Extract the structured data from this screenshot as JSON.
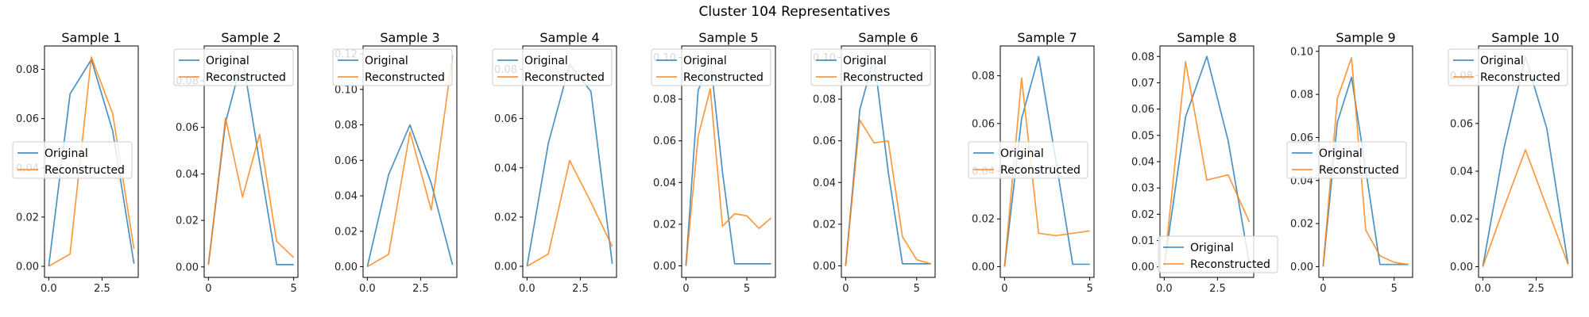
{
  "figure": {
    "suptitle": "Cluster 104 Representatives",
    "colors": {
      "original": "#1f77b4",
      "reconstructed": "#ff7f0e"
    }
  },
  "chart_data": [
    {
      "type": "line",
      "title": "Sample 1",
      "x": [
        0,
        1,
        2,
        3,
        4
      ],
      "series": [
        {
          "name": "Original",
          "values": [
            0.0,
            0.07,
            0.084,
            0.055,
            0.001
          ]
        },
        {
          "name": "Reconstructed",
          "values": [
            0.0,
            0.005,
            0.085,
            0.062,
            0.007
          ]
        }
      ],
      "xlim": [
        -0.2,
        4.2
      ],
      "ylim": [
        -0.0045,
        0.0895
      ],
      "xticks": [
        0,
        2.5
      ],
      "xtick_labels": [
        "0.0",
        "2.5"
      ],
      "yticks": [
        0.0,
        0.02,
        0.04,
        0.06,
        0.08
      ],
      "ytick_labels": [
        "0.00",
        "0.02",
        "0.04",
        "0.06",
        "0.08"
      ],
      "legend": "center-left",
      "legend_labels": [
        "Original",
        "Reconstructed"
      ]
    },
    {
      "type": "line",
      "title": "Sample 2",
      "x": [
        0,
        1,
        2,
        3,
        4,
        5
      ],
      "series": [
        {
          "name": "Original",
          "values": [
            0.001,
            0.062,
            0.09,
            0.045,
            0.001,
            0.001
          ]
        },
        {
          "name": "Reconstructed",
          "values": [
            0.001,
            0.064,
            0.03,
            0.057,
            0.011,
            0.004
          ]
        }
      ],
      "xlim": [
        -0.25,
        5.25
      ],
      "ylim": [
        -0.0045,
        0.095
      ],
      "xticks": [
        0,
        5
      ],
      "xtick_labels": [
        "0",
        "5"
      ],
      "yticks": [
        0.0,
        0.02,
        0.04,
        0.06,
        0.08
      ],
      "ytick_labels": [
        "0.00",
        "0.02",
        "0.04",
        "0.06",
        "0.08"
      ],
      "legend": "upper-left",
      "legend_labels": [
        "Original",
        "Reconstructed"
      ]
    },
    {
      "type": "line",
      "title": "Sample 3",
      "x": [
        0,
        1,
        2,
        3,
        4
      ],
      "series": [
        {
          "name": "Original",
          "values": [
            0.0,
            0.052,
            0.08,
            0.047,
            0.001
          ]
        },
        {
          "name": "Reconstructed",
          "values": [
            0.0,
            0.007,
            0.076,
            0.032,
            0.119
          ]
        }
      ],
      "xlim": [
        -0.2,
        4.2
      ],
      "ylim": [
        -0.006,
        0.1245
      ],
      "xticks": [
        0,
        2.5
      ],
      "xtick_labels": [
        "0.0",
        "2.5"
      ],
      "yticks": [
        0.0,
        0.02,
        0.04,
        0.06,
        0.08,
        0.1,
        0.12
      ],
      "ytick_labels": [
        "0.00",
        "0.02",
        "0.04",
        "0.06",
        "0.08",
        "0.10",
        "0.12"
      ],
      "legend": "upper-left",
      "legend_labels": [
        "Original",
        "Reconstructed"
      ]
    },
    {
      "type": "line",
      "title": "Sample 4",
      "x": [
        0,
        1,
        2,
        3,
        4
      ],
      "series": [
        {
          "name": "Original",
          "values": [
            0.0,
            0.05,
            0.082,
            0.071,
            0.001
          ]
        },
        {
          "name": "Reconstructed",
          "values": [
            0.0,
            0.005,
            0.043,
            0.026,
            0.008
          ]
        }
      ],
      "xlim": [
        -0.2,
        4.2
      ],
      "ylim": [
        -0.0045,
        0.0895
      ],
      "xticks": [
        0,
        2.5
      ],
      "xtick_labels": [
        "0.0",
        "2.5"
      ],
      "yticks": [
        0.0,
        0.02,
        0.04,
        0.06,
        0.08
      ],
      "ytick_labels": [
        "0.00",
        "0.02",
        "0.04",
        "0.06",
        "0.08"
      ],
      "legend": "upper-left",
      "legend_labels": [
        "Original",
        "Reconstructed"
      ]
    },
    {
      "type": "line",
      "title": "Sample 5",
      "x": [
        0,
        1,
        2,
        3,
        4,
        5,
        6,
        7
      ],
      "series": [
        {
          "name": "Original",
          "values": [
            0.0,
            0.084,
            0.1,
            0.045,
            0.001,
            0.001,
            0.001,
            0.001
          ]
        },
        {
          "name": "Reconstructed",
          "values": [
            0.0,
            0.062,
            0.085,
            0.019,
            0.025,
            0.024,
            0.018,
            0.023
          ]
        }
      ],
      "xlim": [
        -0.35,
        7.35
      ],
      "ylim": [
        -0.0055,
        0.1055
      ],
      "xticks": [
        0,
        5
      ],
      "xtick_labels": [
        "0",
        "5"
      ],
      "yticks": [
        0.0,
        0.02,
        0.04,
        0.06,
        0.08,
        0.1
      ],
      "ytick_labels": [
        "0.00",
        "0.02",
        "0.04",
        "0.06",
        "0.08",
        "0.10"
      ],
      "legend": "upper-left",
      "legend_labels": [
        "Original",
        "Reconstructed"
      ]
    },
    {
      "type": "line",
      "title": "Sample 6",
      "x": [
        0,
        1,
        2,
        3,
        4,
        5,
        6
      ],
      "series": [
        {
          "name": "Original",
          "values": [
            0.0,
            0.075,
            0.1,
            0.045,
            0.001,
            0.001,
            0.001
          ]
        },
        {
          "name": "Reconstructed",
          "values": [
            0.0,
            0.07,
            0.059,
            0.06,
            0.014,
            0.003,
            0.001
          ]
        }
      ],
      "xlim": [
        -0.3,
        6.3
      ],
      "ylim": [
        -0.0055,
        0.1055
      ],
      "xticks": [
        0,
        5
      ],
      "xtick_labels": [
        "0",
        "5"
      ],
      "yticks": [
        0.0,
        0.02,
        0.04,
        0.06,
        0.08,
        0.1
      ],
      "ytick_labels": [
        "0.00",
        "0.02",
        "0.04",
        "0.06",
        "0.08",
        "0.10"
      ],
      "legend": "upper-left",
      "legend_labels": [
        "Original",
        "Reconstructed"
      ]
    },
    {
      "type": "line",
      "title": "Sample 7",
      "x": [
        0,
        1,
        2,
        3,
        4,
        5
      ],
      "series": [
        {
          "name": "Original",
          "values": [
            0.0,
            0.062,
            0.088,
            0.045,
            0.001,
            0.001
          ]
        },
        {
          "name": "Reconstructed",
          "values": [
            0.0,
            0.079,
            0.014,
            0.013,
            0.014,
            0.015
          ]
        }
      ],
      "xlim": [
        -0.25,
        5.25
      ],
      "ylim": [
        -0.0045,
        0.0925
      ],
      "xticks": [
        0,
        5
      ],
      "xtick_labels": [
        "0",
        "5"
      ],
      "yticks": [
        0.0,
        0.02,
        0.04,
        0.06,
        0.08
      ],
      "ytick_labels": [
        "0.00",
        "0.02",
        "0.04",
        "0.06",
        "0.08"
      ],
      "legend": "center-left",
      "legend_labels": [
        "Original",
        "Reconstructed"
      ]
    },
    {
      "type": "line",
      "title": "Sample 8",
      "x": [
        0,
        1,
        2,
        3,
        4
      ],
      "series": [
        {
          "name": "Original",
          "values": [
            0.0,
            0.057,
            0.08,
            0.048,
            0.001
          ]
        },
        {
          "name": "Reconstructed",
          "values": [
            0.0,
            0.078,
            0.033,
            0.035,
            0.017
          ]
        }
      ],
      "xlim": [
        -0.2,
        4.2
      ],
      "ylim": [
        -0.004,
        0.084
      ],
      "xticks": [
        0,
        2.5
      ],
      "xtick_labels": [
        "0.0",
        "2.5"
      ],
      "yticks": [
        0.0,
        0.01,
        0.02,
        0.03,
        0.04,
        0.05,
        0.06,
        0.07,
        0.08
      ],
      "ytick_labels": [
        "0.00",
        "0.01",
        "0.02",
        "0.03",
        "0.04",
        "0.05",
        "0.06",
        "0.07",
        "0.08"
      ],
      "legend": "lower-center",
      "legend_labels": [
        "Original",
        "Reconstructed"
      ]
    },
    {
      "type": "line",
      "title": "Sample 9",
      "x": [
        0,
        1,
        2,
        3,
        4,
        5,
        6
      ],
      "series": [
        {
          "name": "Original",
          "values": [
            0.0,
            0.067,
            0.088,
            0.045,
            0.001,
            0.001,
            0.001
          ]
        },
        {
          "name": "Reconstructed",
          "values": [
            0.0,
            0.078,
            0.097,
            0.017,
            0.005,
            0.002,
            0.001
          ]
        }
      ],
      "xlim": [
        -0.3,
        6.3
      ],
      "ylim": [
        -0.005,
        0.1025
      ],
      "xticks": [
        0,
        5
      ],
      "xtick_labels": [
        "0",
        "5"
      ],
      "yticks": [
        0.0,
        0.02,
        0.04,
        0.06,
        0.08,
        0.1
      ],
      "ytick_labels": [
        "0.00",
        "0.02",
        "0.04",
        "0.06",
        "0.08",
        "0.10"
      ],
      "legend": "center-left",
      "legend_labels": [
        "Original",
        "Reconstructed"
      ]
    },
    {
      "type": "line",
      "title": "Sample 10",
      "x": [
        0,
        1,
        2,
        3,
        4
      ],
      "series": [
        {
          "name": "Original",
          "values": [
            0.0,
            0.05,
            0.088,
            0.058,
            0.001
          ]
        },
        {
          "name": "Reconstructed",
          "values": [
            0.0,
            0.025,
            0.049,
            0.025,
            0.001
          ]
        }
      ],
      "xlim": [
        -0.2,
        4.2
      ],
      "ylim": [
        -0.0045,
        0.0925
      ],
      "xticks": [
        0,
        2.5
      ],
      "xtick_labels": [
        "0.0",
        "2.5"
      ],
      "yticks": [
        0.0,
        0.02,
        0.04,
        0.06,
        0.08
      ],
      "ytick_labels": [
        "0.00",
        "0.02",
        "0.04",
        "0.06",
        "0.08"
      ],
      "legend": "upper-left",
      "legend_labels": [
        "Original",
        "Reconstructed"
      ]
    }
  ]
}
